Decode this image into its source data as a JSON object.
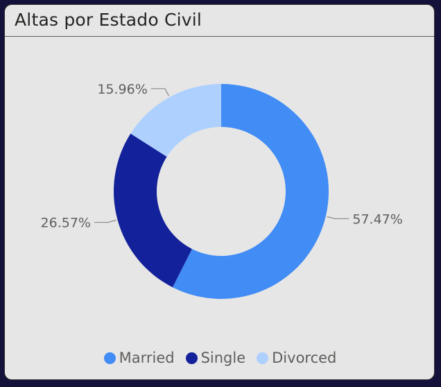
{
  "card": {
    "title": "Altas por Estado Civil"
  },
  "chart_data": {
    "type": "pie",
    "variant": "donut",
    "title": "Altas por Estado Civil",
    "categories": [
      "Married",
      "Single",
      "Divorced"
    ],
    "values": [
      57.47,
      26.57,
      15.96
    ],
    "data_labels": [
      "57.47%",
      "26.57%",
      "15.96%"
    ],
    "colors": [
      "#418cf5",
      "#13219a",
      "#aed0ff"
    ],
    "legend_position": "bottom-center"
  }
}
